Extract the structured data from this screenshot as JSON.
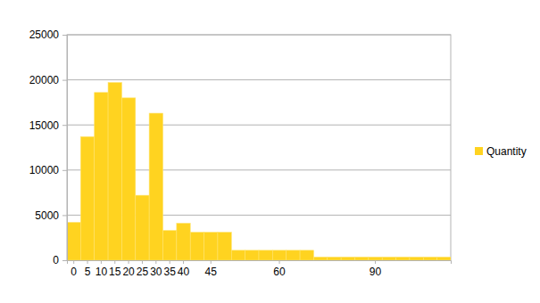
{
  "chart_data": {
    "type": "bar",
    "categories": [
      "0",
      "5",
      "10",
      "15",
      "20",
      "25",
      "30",
      "35",
      "40",
      null,
      "45",
      null,
      null,
      null,
      null,
      "60",
      null,
      null,
      null,
      null,
      null,
      null,
      "90",
      null,
      null,
      null,
      null,
      null
    ],
    "series": [
      {
        "name": "Quantity",
        "color": "#ffd320",
        "values": [
          4200,
          13700,
          18600,
          19700,
          18000,
          7200,
          16300,
          3300,
          4100,
          3100,
          3100,
          3100,
          1100,
          1100,
          1100,
          1100,
          1100,
          1100,
          350,
          350,
          350,
          350,
          350,
          350,
          350,
          350,
          350,
          350
        ]
      }
    ],
    "ylim": [
      0,
      25000
    ],
    "yticks": [
      0,
      5000,
      10000,
      15000,
      20000,
      25000
    ],
    "grid": true,
    "legend": "right"
  }
}
